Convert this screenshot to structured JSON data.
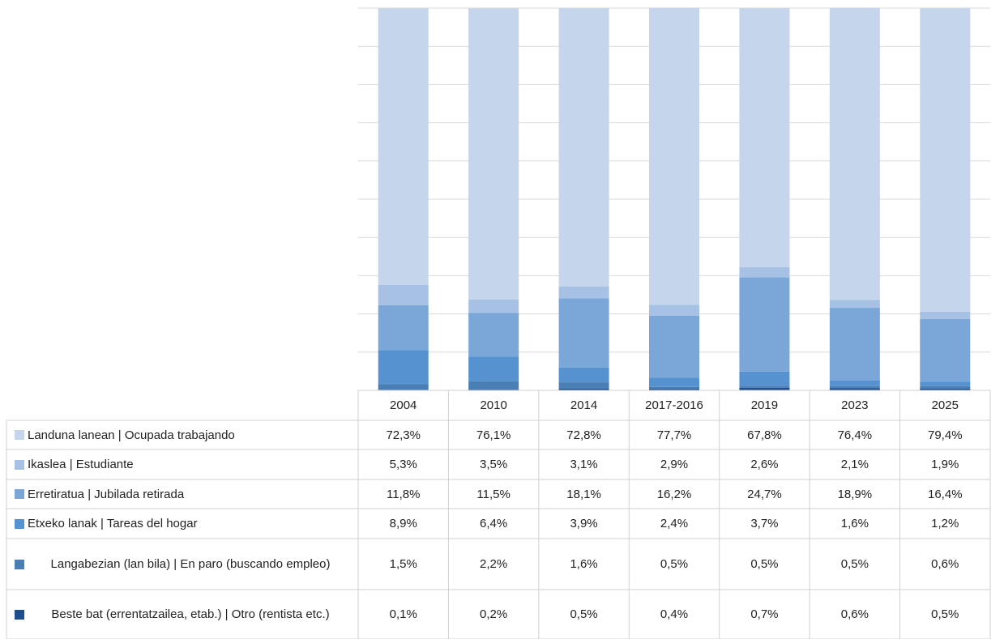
{
  "chart_data": {
    "type": "stacked_bar",
    "categories": [
      "2004",
      "2010",
      "2014",
      "2017-2016",
      "2019",
      "2023",
      "2025"
    ],
    "ylim": [
      0,
      100
    ],
    "yticks": [
      0,
      10,
      20,
      30,
      40,
      50,
      60,
      70,
      80,
      90,
      100
    ],
    "grid": true,
    "series": [
      {
        "name": "Landuna lanean | Ocupada trabajando",
        "color": "#c5d5ec",
        "values": [
          72.3,
          76.1,
          72.8,
          77.7,
          67.8,
          76.4,
          79.4
        ],
        "value_labels": [
          "72,3%",
          "76,1%",
          "72,8%",
          "77,7%",
          "67,8%",
          "76,4%",
          "79,4%"
        ]
      },
      {
        "name": "Ikaslea | Estudiante",
        "color": "#a6c1e4",
        "values": [
          5.3,
          3.5,
          3.1,
          2.9,
          2.6,
          2.1,
          1.9
        ],
        "value_labels": [
          "5,3%",
          "3,5%",
          "3,1%",
          "2,9%",
          "2,6%",
          "2,1%",
          "1,9%"
        ]
      },
      {
        "name": "Erretiratua | Jubilada retirada",
        "color": "#7aa7d8",
        "values": [
          11.8,
          11.5,
          18.1,
          16.2,
          24.7,
          18.9,
          16.4
        ],
        "value_labels": [
          "11,8%",
          "11,5%",
          "18,1%",
          "16,2%",
          "24,7%",
          "18,9%",
          "16,4%"
        ]
      },
      {
        "name": "Etxeko lanak | Tareas del hogar",
        "color": "#5592cf",
        "values": [
          8.9,
          6.4,
          3.9,
          2.4,
          3.7,
          1.6,
          1.2
        ],
        "value_labels": [
          "8,9%",
          "6,4%",
          "3,9%",
          "2,4%",
          "3,7%",
          "1,6%",
          "1,2%"
        ]
      },
      {
        "name": "Langabezian (lan bila) | En paro (buscando empleo)",
        "color": "#4a7fb5",
        "values": [
          1.5,
          2.2,
          1.6,
          0.5,
          0.5,
          0.5,
          0.6
        ],
        "value_labels": [
          "1,5%",
          "2,2%",
          "1,6%",
          "0,5%",
          "0,5%",
          "0,5%",
          "0,6%"
        ]
      },
      {
        "name": "Beste bat (errentatzailea, etab.) | Otro (rentista etc.)",
        "color": "#1f4e8c",
        "values": [
          0.1,
          0.2,
          0.5,
          0.4,
          0.7,
          0.6,
          0.5
        ],
        "value_labels": [
          "0,1%",
          "0,2%",
          "0,5%",
          "0,4%",
          "0,7%",
          "0,6%",
          "0,5%"
        ]
      }
    ]
  }
}
